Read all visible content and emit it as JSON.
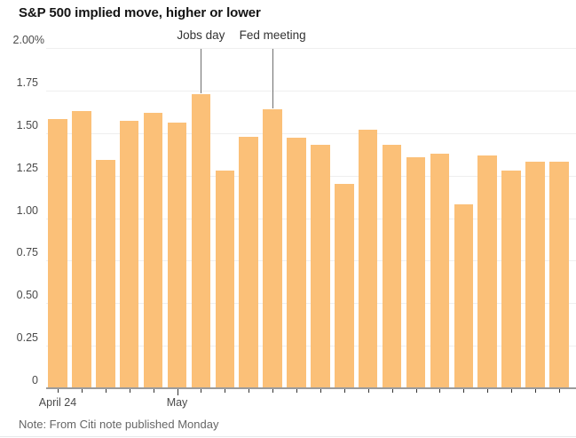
{
  "title": "S&P 500 implied move, higher or lower",
  "note": "Note: From Citi note published Monday",
  "chart_data": {
    "type": "bar",
    "title": "S&P 500 implied move, higher or lower",
    "unit": "%",
    "values": [
      1.58,
      1.63,
      1.34,
      1.57,
      1.62,
      1.56,
      1.73,
      1.28,
      1.48,
      1.64,
      1.47,
      1.43,
      1.2,
      1.52,
      1.43,
      1.36,
      1.38,
      1.08,
      1.37,
      1.28,
      1.33,
      1.33
    ],
    "ylim": [
      0,
      2.0
    ],
    "grid": true,
    "y_ticks": [
      {
        "label": "2.00%",
        "value": 2.0
      },
      {
        "label": "1.75",
        "value": 1.75
      },
      {
        "label": "1.50",
        "value": 1.5
      },
      {
        "label": "1.25",
        "value": 1.25
      },
      {
        "label": "1.00",
        "value": 1.0
      },
      {
        "label": "0.75",
        "value": 0.75
      },
      {
        "label": "0.50",
        "value": 0.5
      },
      {
        "label": "0.25",
        "value": 0.25
      },
      {
        "label": "0",
        "value": 0
      }
    ],
    "x_tick_labels": [
      {
        "label": "April 24",
        "bar_index": 0,
        "major": false
      },
      {
        "label": "May",
        "bar_index": 5,
        "major": true
      }
    ],
    "annotations": [
      {
        "label": "Jobs day",
        "bar_index": 6
      },
      {
        "label": "Fed meeting",
        "bar_index": 9
      }
    ],
    "colors": {
      "bar": "#FBC078",
      "gridline": "#EFEFEF",
      "axis": "#9B9B9B",
      "tick": "#333333",
      "annotation_line": "#6E6E6E",
      "annotation_text": "#333333",
      "axis_text": "#4A4A4A",
      "title_text": "#141414",
      "note_text": "#666666"
    }
  }
}
